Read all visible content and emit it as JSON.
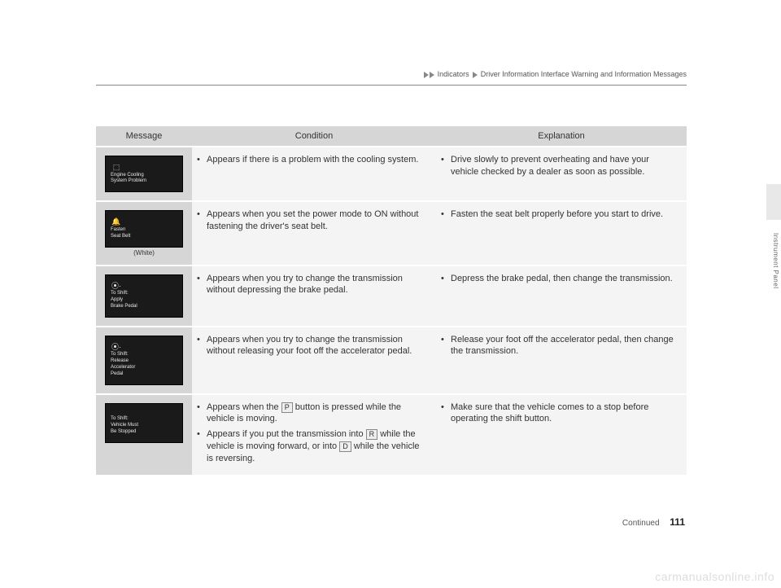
{
  "breadcrumb": {
    "a": "Indicators",
    "b": "Driver Information Interface Warning and Information Messages"
  },
  "headers": {
    "msg": "Message",
    "cond": "Condition",
    "expl": "Explanation"
  },
  "rows": [
    {
      "dash_lines": [
        "Engine Cooling",
        "System Problem"
      ],
      "dash_icon": "⬚",
      "cond": [
        "Appears if there is a problem with the cooling system."
      ],
      "expl": [
        "Drive slowly to prevent overheating and have your vehicle checked by a dealer as soon as possible."
      ]
    },
    {
      "dash_lines": [
        "Fasten",
        "Seat Belt"
      ],
      "dash_icon": "🔔",
      "row_label": "(White)",
      "cond": [
        "Appears when you set the power mode to ON without fastening the driver's seat belt."
      ],
      "expl": [
        "Fasten the seat belt properly before you start to drive."
      ]
    },
    {
      "dash_lines": [
        "To Shift:",
        "Apply",
        "Brake Pedal"
      ],
      "dash_icon": "⦿·",
      "cond": [
        "Appears when you try to change the transmission without depressing the brake pedal."
      ],
      "expl": [
        "Depress the brake pedal, then change the transmission."
      ]
    },
    {
      "dash_lines": [
        "To Shift:",
        "Release",
        "Accelerator",
        "Pedal"
      ],
      "dash_icon": "⦿·",
      "cond": [
        "Appears when you try to change the transmission without releasing your foot off the accelerator pedal."
      ],
      "expl": [
        "Release your foot off the accelerator pedal, then change the transmission."
      ]
    },
    {
      "dash_lines": [
        "To Shift:",
        "Vehicle Must",
        "Be Stopped"
      ],
      "dash_icon": "",
      "cond_rich": true,
      "cond_parts": [
        [
          "Appears when the ",
          "P",
          " button is pressed while the vehicle is moving."
        ],
        [
          "Appears if you put the transmission into ",
          "R",
          " while the vehicle is moving forward, or into ",
          "D",
          " while the vehicle is reversing."
        ]
      ],
      "expl": [
        "Make sure that the vehicle comes to a stop before operating the shift button."
      ]
    }
  ],
  "side_label": "Instrument Panel",
  "footer_continued": "Continued",
  "footer_page": "111",
  "watermark": "carmanualsonline.info"
}
